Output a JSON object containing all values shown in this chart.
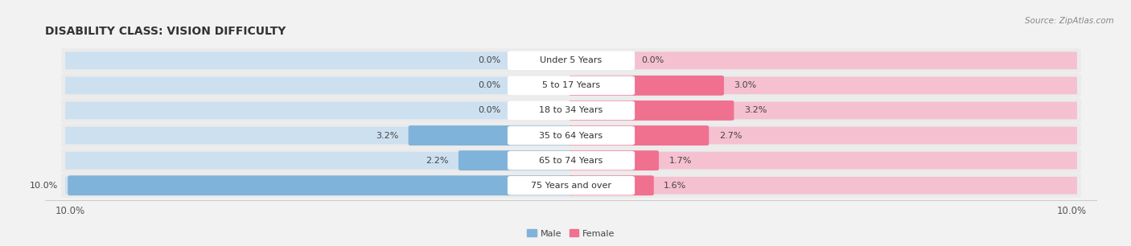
{
  "title": "DISABILITY CLASS: VISION DIFFICULTY",
  "source_text": "Source: ZipAtlas.com",
  "categories": [
    "Under 5 Years",
    "5 to 17 Years",
    "18 to 34 Years",
    "35 to 64 Years",
    "65 to 74 Years",
    "75 Years and over"
  ],
  "male_values": [
    0.0,
    0.0,
    0.0,
    3.2,
    2.2,
    10.0
  ],
  "female_values": [
    0.0,
    3.0,
    3.2,
    2.7,
    1.7,
    1.6
  ],
  "male_color": "#7fb3d9",
  "female_color": "#f07090",
  "male_bg_color": "#cde0f0",
  "female_bg_color": "#f5c0d0",
  "row_bg_color": "#ebebeb",
  "male_label": "Male",
  "female_label": "Female",
  "axis_max": 10.0,
  "bg_color": "#f2f2f2",
  "title_fontsize": 10,
  "source_fontsize": 7.5,
  "label_fontsize": 8,
  "value_fontsize": 8,
  "tick_fontsize": 8.5
}
